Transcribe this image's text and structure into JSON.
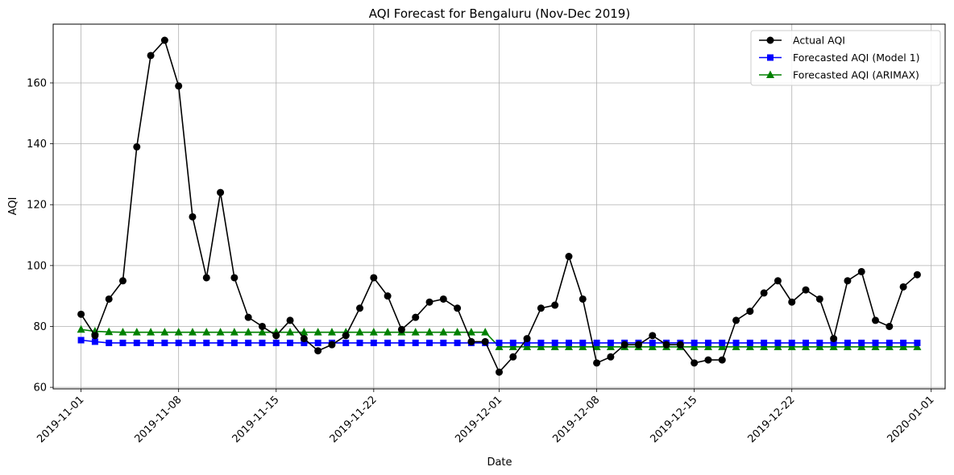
{
  "chart_data": {
    "type": "line",
    "title": "AQI Forecast for Bengaluru (Nov-Dec 2019)",
    "xlabel": "Date",
    "ylabel": "AQI",
    "grid": true,
    "legend_position": "top-right",
    "x_start": "2019-11-01",
    "x_ticks": [
      "2019-11-01",
      "2019-11-08",
      "2019-11-15",
      "2019-11-22",
      "2019-12-01",
      "2019-12-08",
      "2019-12-15",
      "2019-12-22",
      "2020-01-01"
    ],
    "y_ticks": [
      "60",
      "80",
      "100",
      "120",
      "140",
      "160"
    ],
    "xlim": [
      "2019-10-30",
      "2020-01-02"
    ],
    "ylim": [
      59.5,
      179.3
    ],
    "x": [
      "2019-11-01",
      "2019-11-02",
      "2019-11-03",
      "2019-11-04",
      "2019-11-05",
      "2019-11-06",
      "2019-11-07",
      "2019-11-08",
      "2019-11-09",
      "2019-11-10",
      "2019-11-11",
      "2019-11-12",
      "2019-11-13",
      "2019-11-14",
      "2019-11-15",
      "2019-11-16",
      "2019-11-17",
      "2019-11-18",
      "2019-11-19",
      "2019-11-20",
      "2019-11-21",
      "2019-11-22",
      "2019-11-23",
      "2019-11-24",
      "2019-11-25",
      "2019-11-26",
      "2019-11-27",
      "2019-11-28",
      "2019-11-29",
      "2019-11-30",
      "2019-12-01",
      "2019-12-02",
      "2019-12-03",
      "2019-12-04",
      "2019-12-05",
      "2019-12-06",
      "2019-12-07",
      "2019-12-08",
      "2019-12-09",
      "2019-12-10",
      "2019-12-11",
      "2019-12-12",
      "2019-12-13",
      "2019-12-14",
      "2019-12-15",
      "2019-12-16",
      "2019-12-17",
      "2019-12-18",
      "2019-12-19",
      "2019-12-20",
      "2019-12-21",
      "2019-12-22",
      "2019-12-23",
      "2019-12-24",
      "2019-12-25",
      "2019-12-26",
      "2019-12-27",
      "2019-12-28",
      "2019-12-29",
      "2019-12-30",
      "2019-12-31"
    ],
    "series": [
      {
        "name": "Actual AQI",
        "color": "#000000",
        "marker": "circle",
        "values": [
          84,
          77,
          89,
          95,
          139,
          169,
          174,
          159,
          116,
          96,
          124,
          96,
          83,
          80,
          77,
          82,
          76,
          72,
          74,
          77,
          86,
          96,
          90,
          79,
          83,
          88,
          89,
          86,
          75,
          75,
          65,
          70,
          76,
          86,
          87,
          103,
          89,
          68,
          70,
          74,
          74,
          77,
          74,
          74,
          68,
          69,
          69,
          82,
          85,
          91,
          95,
          88,
          92,
          89,
          76,
          95,
          98,
          82,
          80,
          93,
          97
        ]
      },
      {
        "name": "Forecasted AQI (Model 1)",
        "color": "#0000ff",
        "marker": "square",
        "values": [
          75.5,
          75,
          74.6,
          74.6,
          74.6,
          74.6,
          74.6,
          74.6,
          74.6,
          74.6,
          74.6,
          74.6,
          74.6,
          74.6,
          74.6,
          74.6,
          74.6,
          74.6,
          74.6,
          74.6,
          74.6,
          74.6,
          74.6,
          74.6,
          74.6,
          74.6,
          74.6,
          74.6,
          74.6,
          74.6,
          74.6,
          74.6,
          74.6,
          74.6,
          74.6,
          74.6,
          74.6,
          74.6,
          74.6,
          74.6,
          74.6,
          74.6,
          74.6,
          74.6,
          74.6,
          74.6,
          74.6,
          74.6,
          74.6,
          74.6,
          74.6,
          74.6,
          74.6,
          74.6,
          74.6,
          74.6,
          74.6,
          74.6,
          74.6,
          74.6,
          74.6
        ]
      },
      {
        "name": "Forecasted AQI (ARIMAX)",
        "color": "#008000",
        "marker": "triangle",
        "values": [
          79,
          78.4,
          78.2,
          78.1,
          78.1,
          78.1,
          78.1,
          78.1,
          78.1,
          78.1,
          78.1,
          78.1,
          78.1,
          78.1,
          78.1,
          78.1,
          78.1,
          78.1,
          78.1,
          78.1,
          78.1,
          78.1,
          78.1,
          78.1,
          78.1,
          78.1,
          78.1,
          78.1,
          78.1,
          78.1,
          73.3,
          73.3,
          73.3,
          73.3,
          73.3,
          73.3,
          73.3,
          73.3,
          73.3,
          73.3,
          73.3,
          73.3,
          73.3,
          73.3,
          73.3,
          73.3,
          73.3,
          73.3,
          73.3,
          73.3,
          73.3,
          73.3,
          73.3,
          73.3,
          73.3,
          73.3,
          73.3,
          73.3,
          73.3,
          73.3,
          73.3
        ]
      }
    ]
  }
}
